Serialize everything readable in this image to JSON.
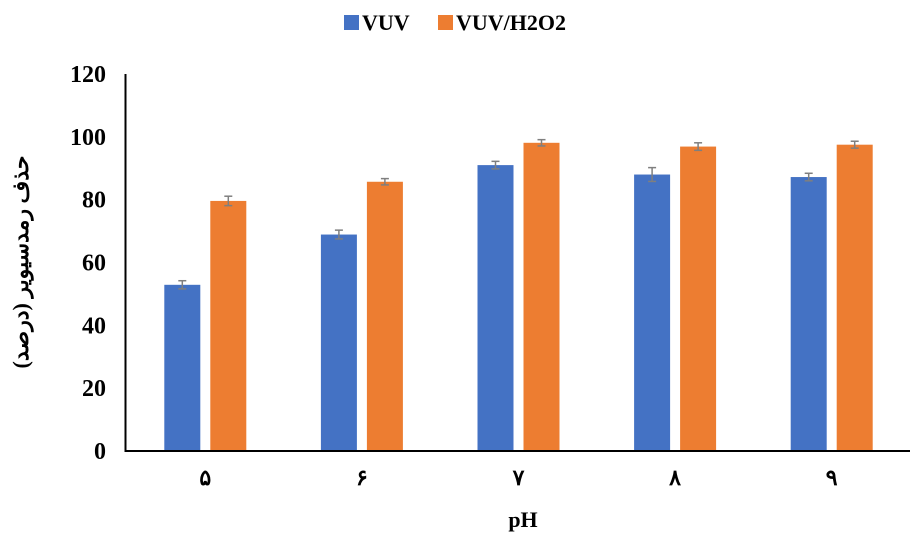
{
  "chart_data": {
    "type": "bar",
    "title": "",
    "xlabel": "pH",
    "ylabel": "حذف رمدسیویر (درصد)",
    "categories": [
      "۵",
      "۶",
      "۷",
      "۸",
      "۹"
    ],
    "ylim": [
      0,
      120
    ],
    "yticks": [
      0,
      20,
      40,
      60,
      80,
      100,
      120
    ],
    "grid": false,
    "legend_position": "top",
    "series": [
      {
        "name": "VUV",
        "color": "#4472C4",
        "values": [
          52.9,
          68.9,
          91.0,
          88.0,
          87.2
        ],
        "errors": [
          1.3,
          1.4,
          1.2,
          2.2,
          1.2
        ]
      },
      {
        "name": "VUV/H2O2",
        "color": "#ED7D31",
        "values": [
          79.6,
          85.7,
          98.1,
          96.9,
          97.5
        ],
        "errors": [
          1.5,
          1.0,
          1.0,
          1.2,
          1.1
        ]
      }
    ]
  }
}
